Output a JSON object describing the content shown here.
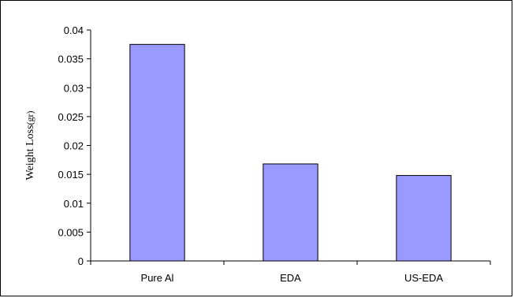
{
  "chart_data": {
    "type": "bar",
    "categories": [
      "Pure Al",
      "EDA",
      "US-EDA"
    ],
    "values": [
      0.0375,
      0.0168,
      0.0148
    ],
    "title": "",
    "xlabel": "",
    "ylabel": "Weight Loss",
    "ylabel_unit": "(gr)",
    "ylim": [
      0,
      0.04
    ],
    "yticks": [
      0,
      0.005,
      0.01,
      0.015,
      0.02,
      0.025,
      0.03,
      0.035,
      0.04
    ],
    "ytick_labels": [
      "0",
      "0.005",
      "0.01",
      "0.015",
      "0.02",
      "0.025",
      "0.03",
      "0.035",
      "0.04"
    ],
    "grid": false,
    "legend": "none",
    "bar_color": "#9999ff",
    "bar_edge_color": "#000000"
  }
}
